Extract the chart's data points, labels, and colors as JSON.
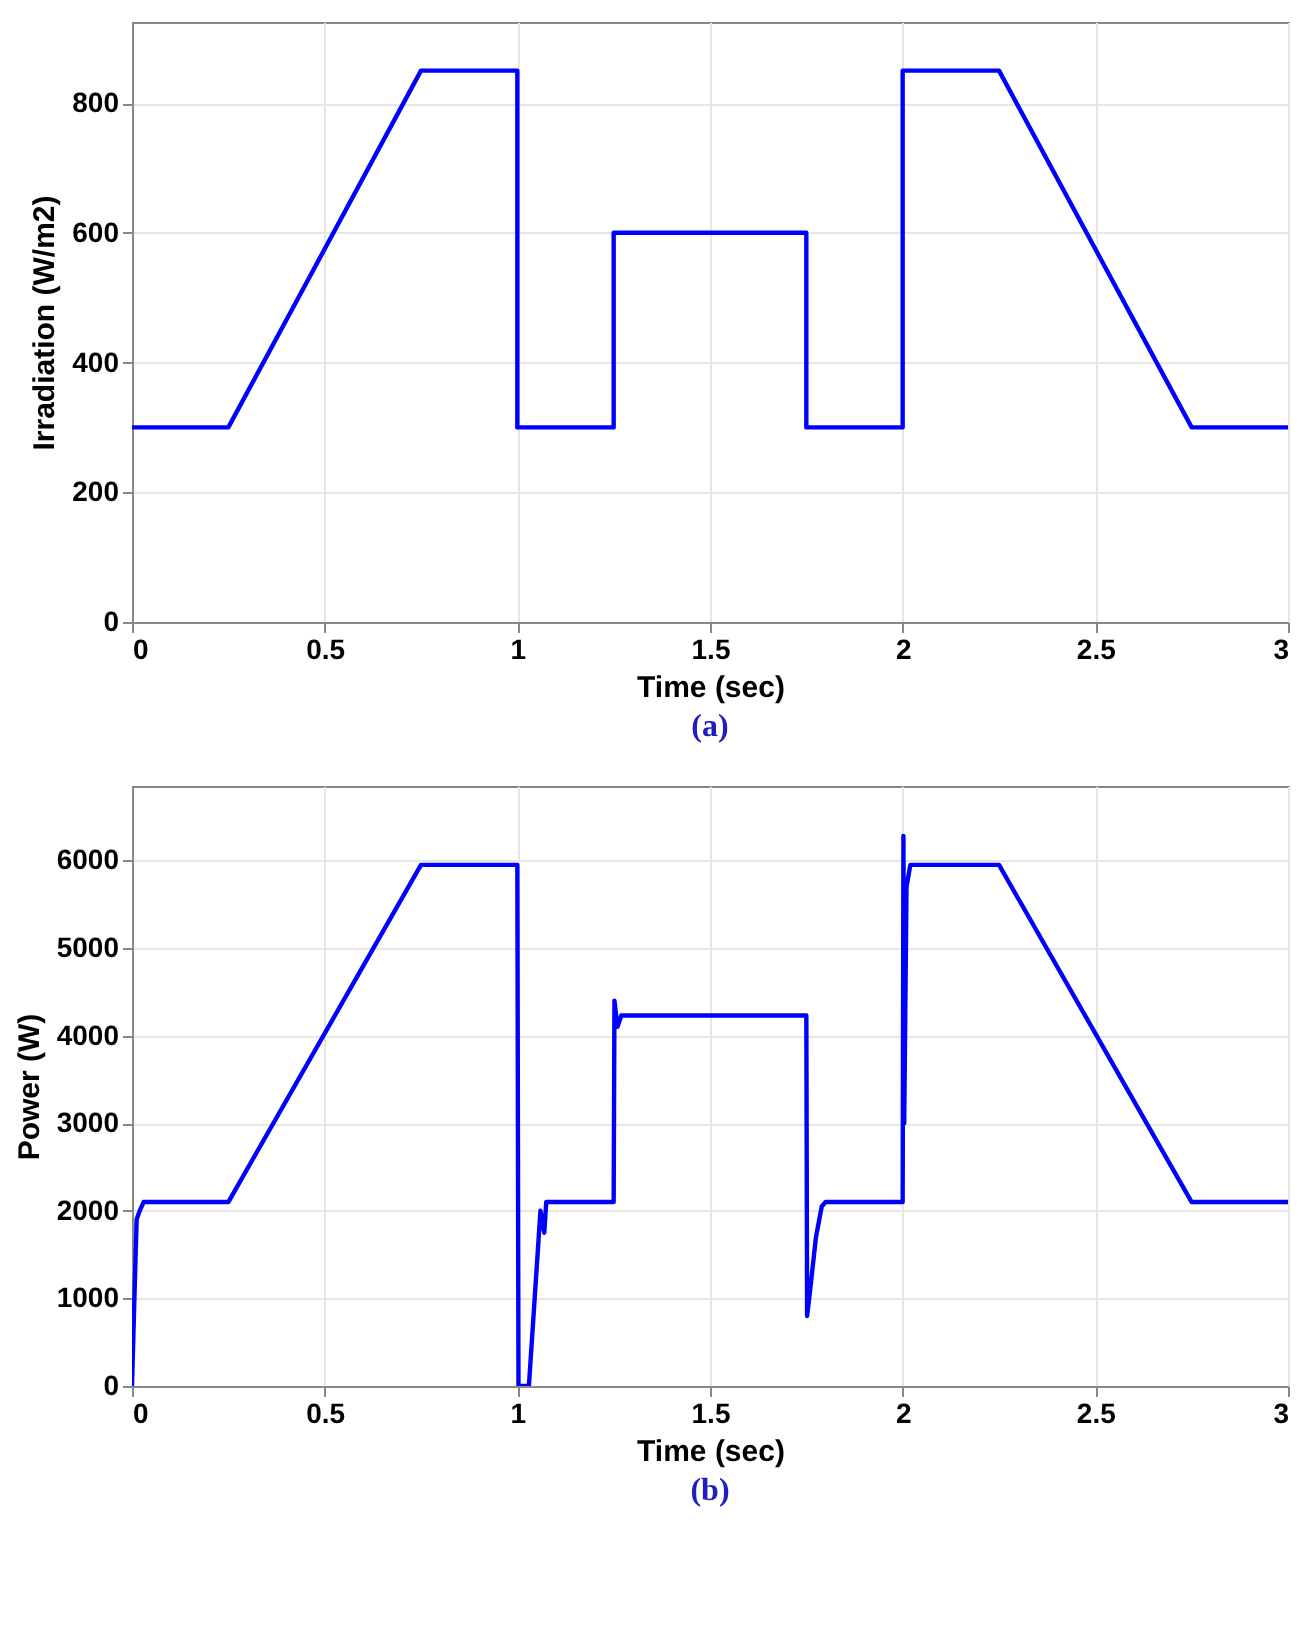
{
  "chart_data": [
    {
      "type": "line",
      "xlabel": "Time (sec)",
      "ylabel": "Irradiation (W/m2)",
      "subtitle": "(a)",
      "xlim": [
        0,
        3
      ],
      "ylim": [
        0,
        925
      ],
      "xticks": [
        0,
        0.5,
        1,
        1.5,
        2,
        2.5,
        3
      ],
      "yticks": [
        0,
        200,
        400,
        600,
        800
      ],
      "grid": true,
      "series": [
        {
          "color": "#0000ff",
          "x": [
            0,
            0.25,
            0.75,
            1,
            1,
            1.25,
            1.25,
            1.75,
            1.75,
            2,
            2,
            2.25,
            2.75,
            3
          ],
          "values": [
            300,
            300,
            850,
            850,
            300,
            300,
            600,
            600,
            300,
            300,
            850,
            850,
            300,
            300
          ]
        }
      ]
    },
    {
      "type": "line",
      "xlabel": "Time (sec)",
      "ylabel": "Power (W)",
      "subtitle": "(b)",
      "xlim": [
        0,
        3
      ],
      "ylim": [
        0,
        6850
      ],
      "xticks": [
        0,
        0.5,
        1,
        1.5,
        2,
        2.5,
        3
      ],
      "yticks": [
        0,
        1000,
        2000,
        3000,
        4000,
        5000,
        6000
      ],
      "grid": true,
      "series": [
        {
          "color": "#0000ff",
          "x": [
            0,
            0.005,
            0.012,
            0.02,
            0.03,
            0.25,
            0.75,
            1,
            1.003,
            1.03,
            1.045,
            1.06,
            1.07,
            1.075,
            1.09,
            1.25,
            1.252,
            1.26,
            1.27,
            1.75,
            1.752,
            1.76,
            1.775,
            1.79,
            1.8,
            2,
            2.002,
            2.004,
            2.01,
            2.02,
            2.25,
            2.75,
            3
          ],
          "values": [
            0,
            800,
            1900,
            2000,
            2100,
            2100,
            5950,
            5950,
            0,
            0,
            1000,
            2000,
            1750,
            2100,
            2100,
            2100,
            4400,
            4100,
            4230,
            4230,
            800,
            1100,
            1700,
            2050,
            2100,
            2100,
            6280,
            3000,
            5700,
            5950,
            5950,
            2100,
            2100
          ]
        }
      ]
    }
  ]
}
